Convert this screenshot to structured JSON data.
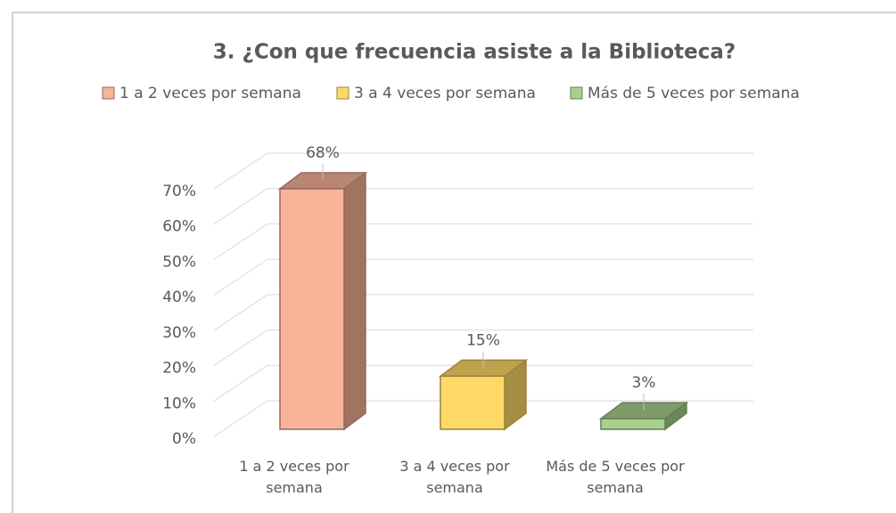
{
  "chart_data": {
    "type": "bar3d",
    "title": "3. ¿Con que frecuencia  asiste a la Biblioteca?",
    "categories": [
      "1 a 2 veces por semana",
      "3 a 4 veces por semana",
      "Más de 5 veces por semana"
    ],
    "values": [
      68,
      15,
      3
    ],
    "value_labels": [
      "68%",
      "15%",
      "3%"
    ],
    "colors": [
      "#f8b398",
      "#ffd966",
      "#a9d18e"
    ],
    "ylim": [
      0,
      70
    ],
    "yticks": [
      {
        "value": 0,
        "label": "0%"
      },
      {
        "value": 10,
        "label": "10%"
      },
      {
        "value": 20,
        "label": "20%"
      },
      {
        "value": 30,
        "label": "30%"
      },
      {
        "value": 40,
        "label": "40%"
      },
      {
        "value": 50,
        "label": "50%"
      },
      {
        "value": 60,
        "label": "60%"
      },
      {
        "value": 70,
        "label": "70%"
      }
    ],
    "grid": true,
    "legend": "top"
  }
}
